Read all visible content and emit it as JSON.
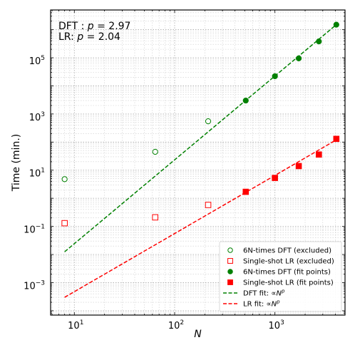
{
  "chart_data": {
    "type": "scatter",
    "title": "",
    "xlabel": "N",
    "ylabel": "Time (min.)",
    "xscale": "log",
    "yscale": "log",
    "xlim": [
      5.8,
      5000
    ],
    "ylim": [
      7e-05,
      5000000
    ],
    "grid": "both major and minor, dotted",
    "legend_position": "lower-right",
    "annotations": [
      {
        "prefix": "DFT : ",
        "variable": "p",
        "value": "2.97"
      },
      {
        "prefix": "LR: ",
        "variable": "p",
        "value": "2.04"
      }
    ],
    "x_major_ticks": [
      {
        "value": 10,
        "base": "10",
        "exp": "1"
      },
      {
        "value": 100,
        "base": "10",
        "exp": "2"
      },
      {
        "value": 1000,
        "base": "10",
        "exp": "3"
      }
    ],
    "y_major_ticks": [
      {
        "value": 0.001,
        "base": "10",
        "exp": "−3"
      },
      {
        "value": 0.1,
        "base": "10",
        "exp": "−1"
      },
      {
        "value": 10,
        "base": "10",
        "exp": "1"
      },
      {
        "value": 1000,
        "base": "10",
        "exp": "3"
      },
      {
        "value": 100000,
        "base": "10",
        "exp": "5"
      }
    ],
    "series": [
      {
        "name": "6N-times DFT (excluded)",
        "marker": "circle-open",
        "color": "#008000",
        "points": [
          [
            8,
            4.8
          ],
          [
            64,
            45
          ],
          [
            216,
            550
          ]
        ]
      },
      {
        "name": "Single-shot LR (excluded)",
        "marker": "square-open",
        "color": "#ff0000",
        "points": [
          [
            8,
            0.13
          ],
          [
            64,
            0.21
          ],
          [
            216,
            0.58
          ]
        ]
      },
      {
        "name": "6N-times DFT (fit points)",
        "marker": "circle-filled",
        "color": "#008000",
        "points": [
          [
            512,
            3000
          ],
          [
            1000,
            22000
          ],
          [
            1728,
            95000
          ],
          [
            2744,
            380000
          ],
          [
            4096,
            1500000
          ]
        ]
      },
      {
        "name": "Single-shot LR (fit points)",
        "marker": "square-filled",
        "color": "#ff0000",
        "points": [
          [
            512,
            1.7
          ],
          [
            1000,
            5.3
          ],
          [
            1728,
            14
          ],
          [
            2744,
            36
          ],
          [
            4096,
            130
          ]
        ]
      },
      {
        "name": "DFT fit:",
        "legend_suffix": {
          "symbol": "∝",
          "base": "N",
          "exp": "p"
        },
        "line": "dashed",
        "color": "#008000",
        "points": [
          [
            8,
            0.0125
          ],
          [
            4096,
            1500000
          ]
        ]
      },
      {
        "name": "LR fit:",
        "legend_suffix": {
          "symbol": "∝",
          "base": "N",
          "exp": "p"
        },
        "line": "dashed",
        "color": "#ff0000",
        "points": [
          [
            8,
            0.0003
          ],
          [
            4096,
            120
          ]
        ]
      }
    ]
  }
}
